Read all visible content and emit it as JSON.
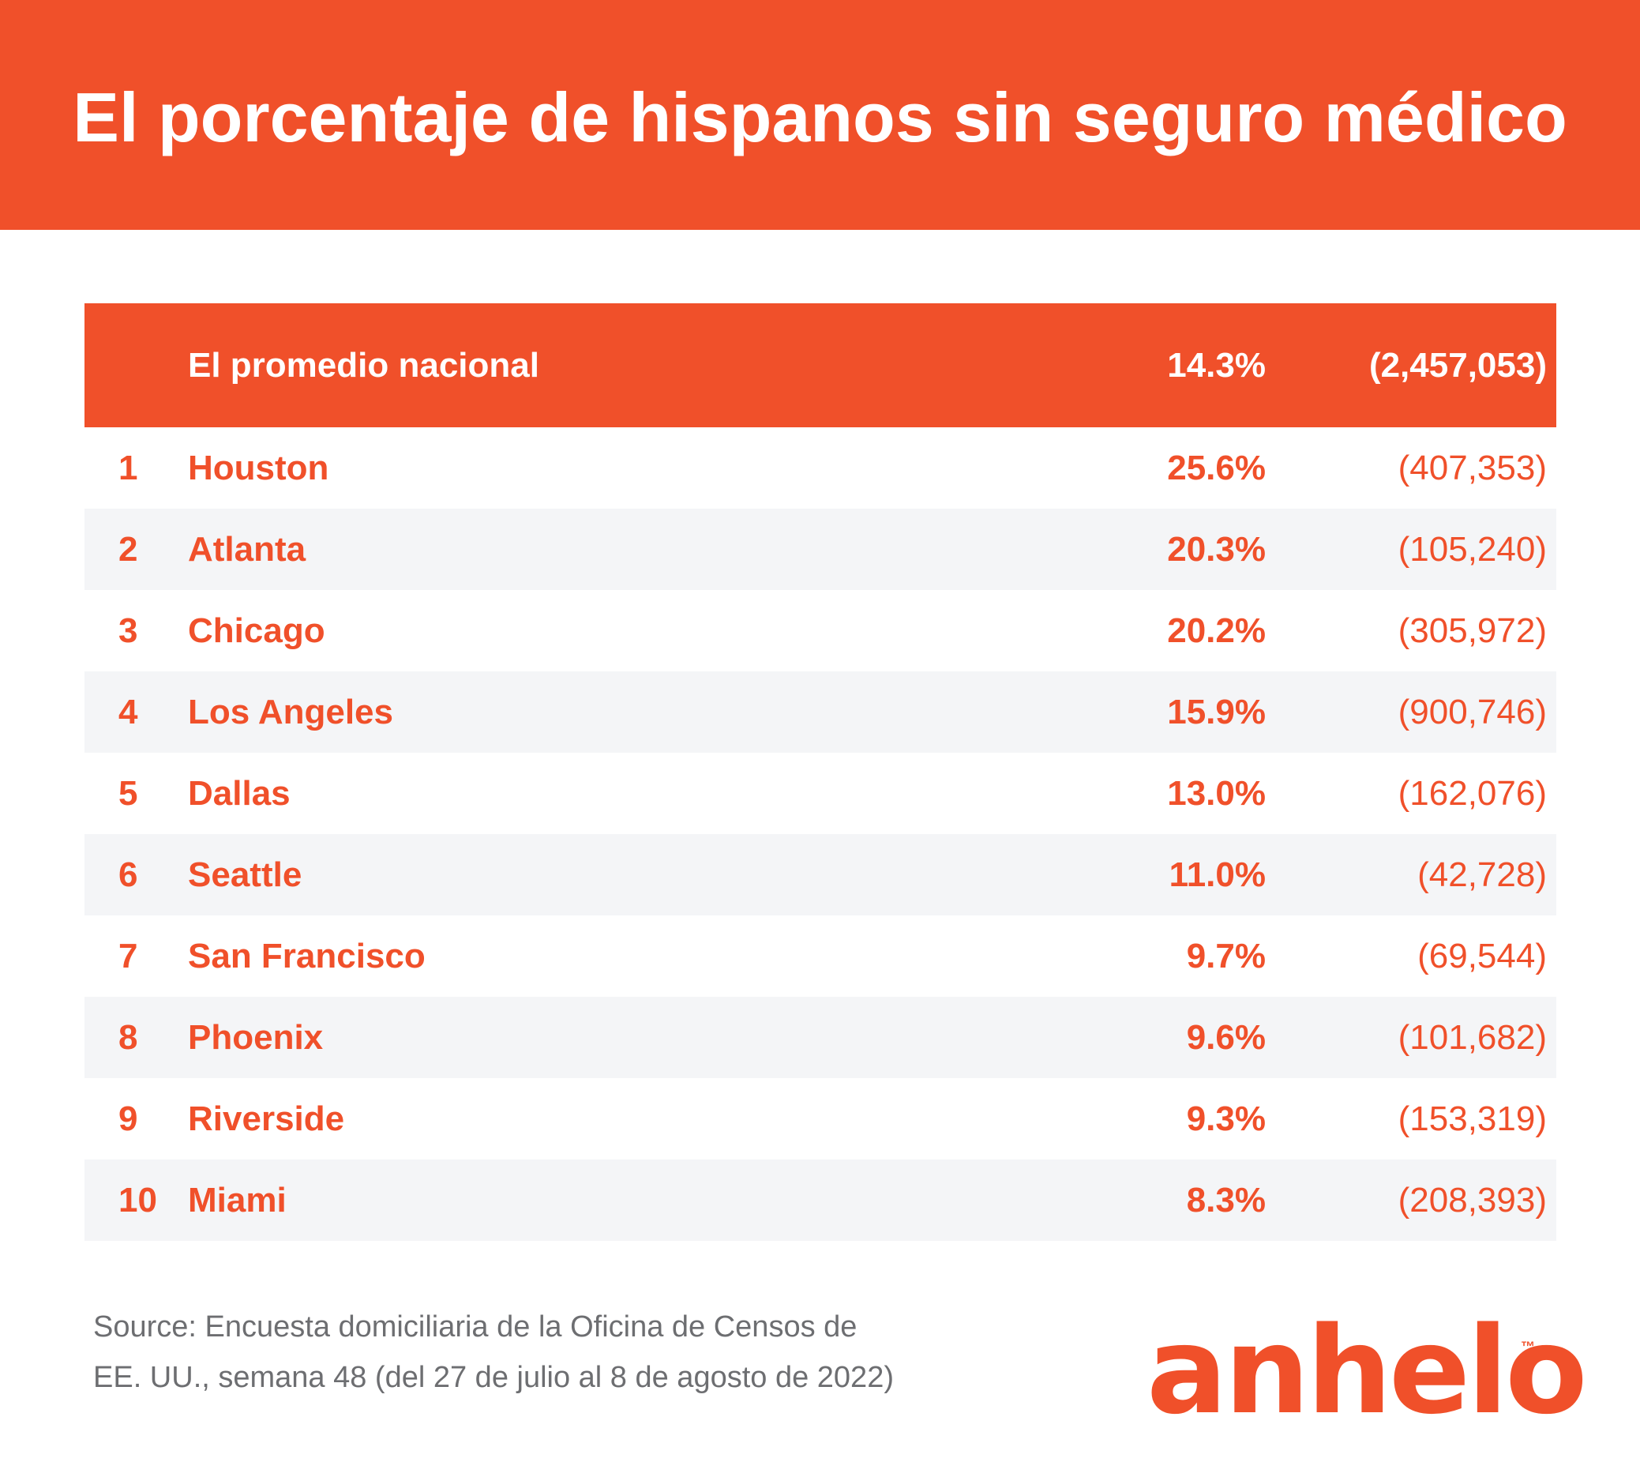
{
  "title": "El porcentaje de hispanos sin seguro médico",
  "colors": {
    "accent": "#f0502a",
    "row_alt": "#f4f5f7",
    "source_text": "#6d6e71"
  },
  "chart_data": {
    "type": "table",
    "national": {
      "label": "El promedio nacional",
      "percent": "14.3%",
      "count": "(2,457,053)"
    },
    "rows": [
      {
        "rank": "1",
        "city": "Houston",
        "percent": "25.6%",
        "count": "(407,353)"
      },
      {
        "rank": "2",
        "city": "Atlanta",
        "percent": "20.3%",
        "count": "(105,240)"
      },
      {
        "rank": "3",
        "city": "Chicago",
        "percent": "20.2%",
        "count": "(305,972)"
      },
      {
        "rank": "4",
        "city": "Los Angeles",
        "percent": "15.9%",
        "count": "(900,746)"
      },
      {
        "rank": "5",
        "city": "Dallas",
        "percent": "13.0%",
        "count": "(162,076)"
      },
      {
        "rank": "6",
        "city": "Seattle",
        "percent": "11.0%",
        "count": "(42,728)"
      },
      {
        "rank": "7",
        "city": "San Francisco",
        "percent": "9.7%",
        "count": "(69,544)"
      },
      {
        "rank": "8",
        "city": "Phoenix",
        "percent": "9.6%",
        "count": "(101,682)"
      },
      {
        "rank": "9",
        "city": "Riverside",
        "percent": "9.3%",
        "count": "(153,319)"
      },
      {
        "rank": "10",
        "city": "Miami",
        "percent": "8.3%",
        "count": "(208,393)"
      }
    ]
  },
  "source": {
    "line1": "Source:  Encuesta domiciliaria de la Oficina de Censos de",
    "line2": "EE. UU., semana 48 (del 27 de julio al 8 de agosto de 2022)"
  },
  "logo": {
    "text": "anhelo",
    "tm": "™"
  }
}
